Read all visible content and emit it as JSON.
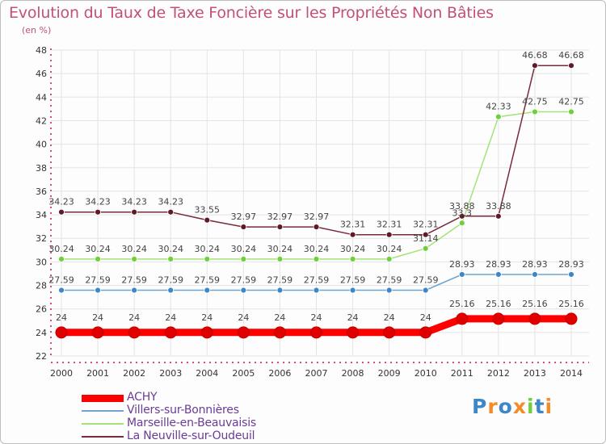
{
  "header": {
    "title": "Evolution du Taux de Taxe Foncière sur les Propriétés Non Bâties",
    "unit": "(en %)"
  },
  "chart_data": {
    "type": "line",
    "title": "Evolution du Taux de Taxe Foncière sur les Propriétés Non Bâties",
    "ylabel": "(en %)",
    "xlabel": "",
    "x": [
      "2000",
      "2001",
      "2002",
      "2003",
      "2004",
      "2005",
      "2006",
      "2007",
      "2008",
      "2009",
      "2010",
      "2011",
      "2012",
      "2013",
      "2014"
    ],
    "ylim": [
      22,
      48
    ],
    "yticks": [
      22,
      24,
      26,
      28,
      30,
      32,
      34,
      36,
      38,
      40,
      42,
      44,
      46,
      48
    ],
    "grid": true,
    "legend": "bottom-left",
    "series": [
      {
        "name": "ACHY",
        "color": "#ff0000",
        "marker": "#e00000",
        "values": [
          24,
          24,
          24,
          24,
          24,
          24,
          24,
          24,
          24,
          24,
          24,
          25.16,
          25.16,
          25.16,
          25.16
        ],
        "labels": [
          "24",
          "24",
          "24",
          "24",
          "24",
          "24",
          "24",
          "24",
          "24",
          "24",
          "24",
          "25.16",
          "25.16",
          "25.16",
          "25.16"
        ]
      },
      {
        "name": "Villers-sur-Bonnières",
        "color": "#6fa5cf",
        "marker": "#3d87c8",
        "values": [
          27.59,
          27.59,
          27.59,
          27.59,
          27.59,
          27.59,
          27.59,
          27.59,
          27.59,
          27.59,
          27.59,
          28.93,
          28.93,
          28.93,
          28.93
        ],
        "labels": [
          "27.59",
          "27.59",
          "27.59",
          "27.59",
          "27.59",
          "27.59",
          "27.59",
          "27.59",
          "27.59",
          "27.59",
          "27.59",
          "28.93",
          "28.93",
          "28.93",
          "28.93"
        ]
      },
      {
        "name": "Marseille-en-Beauvaisis",
        "color": "#a6e27a",
        "marker": "#6fcf3d",
        "values": [
          30.24,
          30.24,
          30.24,
          30.24,
          30.24,
          30.24,
          30.24,
          30.24,
          30.24,
          30.24,
          31.14,
          33.3,
          42.33,
          42.75,
          42.75
        ],
        "labels": [
          "30.24",
          "30.24",
          "30.24",
          "30.24",
          "30.24",
          "30.24",
          "30.24",
          "30.24",
          "30.24",
          "30.24",
          "31.14",
          "33.3",
          "42.33",
          "42.75",
          "42.75"
        ]
      },
      {
        "name": "La Neuville-sur-Oudeuil",
        "color": "#7a2a3a",
        "marker": "#5e1a28",
        "values": [
          34.23,
          34.23,
          34.23,
          34.23,
          33.55,
          32.97,
          32.97,
          32.97,
          32.31,
          32.31,
          32.31,
          33.88,
          33.88,
          46.68,
          46.68
        ],
        "labels": [
          "34.23",
          "34.23",
          "34.23",
          "34.23",
          "33.55",
          "32.97",
          "32.97",
          "32.97",
          "32.31",
          "32.31",
          "32.31",
          "33.88",
          "33.88",
          "46.68",
          "46.68"
        ]
      }
    ]
  },
  "logo": {
    "text": "Proxiti",
    "letters": [
      "P",
      "r",
      "o",
      "x",
      "i",
      "t",
      "i"
    ],
    "colors": [
      "#3d87c8",
      "#f28c28",
      "#3d87c8",
      "#f28c28",
      "#6fcf3d",
      "#3d87c8",
      "#f28c28"
    ]
  }
}
